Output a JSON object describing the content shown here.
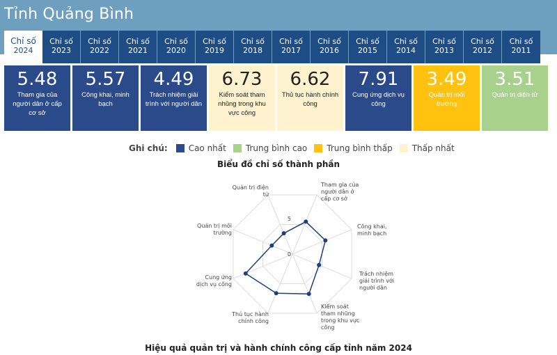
{
  "header": {
    "title": "Tỉnh Quảng Bình"
  },
  "tabs": [
    {
      "label": "Chỉ số",
      "year": "2024",
      "active": true
    },
    {
      "label": "Chỉ số",
      "year": "2023"
    },
    {
      "label": "Chỉ số",
      "year": "2022"
    },
    {
      "label": "Chỉ số",
      "year": "2021"
    },
    {
      "label": "Chỉ số",
      "year": "2020"
    },
    {
      "label": "Chỉ số",
      "year": "2019"
    },
    {
      "label": "Chỉ số",
      "year": "2018"
    },
    {
      "label": "Chỉ số",
      "year": "2017"
    },
    {
      "label": "Chỉ số",
      "year": "2016"
    },
    {
      "label": "Chỉ số",
      "year": "2015"
    },
    {
      "label": "Chỉ số",
      "year": "2014"
    },
    {
      "label": "Chỉ số",
      "year": "2013"
    },
    {
      "label": "Chỉ số",
      "year": "2012"
    },
    {
      "label": "Chỉ số",
      "year": "2011"
    }
  ],
  "cards": [
    {
      "value": "5.48",
      "label": "Tham gia của người dân ở cấp cơ sở",
      "level": "high"
    },
    {
      "value": "5.57",
      "label": "Công khai, minh bạch",
      "level": "high"
    },
    {
      "value": "4.49",
      "label": "Trách nhiệm giải trình với người dân",
      "level": "high"
    },
    {
      "value": "6.73",
      "label": "Kiểm soát tham nhũng trong khu vực công",
      "level": "low"
    },
    {
      "value": "6.62",
      "label": "Thủ tục hành chính công",
      "level": "low"
    },
    {
      "value": "7.91",
      "label": "Cung ứng dịch vụ công",
      "level": "high"
    },
    {
      "value": "3.49",
      "label": "Quản trị môi trường",
      "level": "mid-low"
    },
    {
      "value": "3.51",
      "label": "Quản trị điện tử",
      "level": "mid-high"
    }
  ],
  "legend": {
    "title": "Ghi chú:",
    "items": [
      {
        "label": "Cao nhất",
        "color": "#2a4a8a"
      },
      {
        "label": "Trung bình cao",
        "color": "#a9d18e"
      },
      {
        "label": "Trung bình thấp",
        "color": "#ffc20e"
      },
      {
        "label": "Thấp nhất",
        "color": "#fff3cf"
      }
    ]
  },
  "chart_title": "Biểu đồ chỉ số thành phần",
  "chart_footer": "Hiệu quả quản trị và hành chính công cấp tỉnh năm 2024",
  "chart_data": {
    "type": "radar",
    "title": "Biểu đồ chỉ số thành phần",
    "axes": [
      "Tham gia của người dân ở cấp cơ sở",
      "Công khai, minh bạch",
      "Trách nhiệm giải trình với người dân",
      "Kiểm soát tham nhũng trong khu vực công",
      "Thủ tục hành chính công",
      "Cung ứng dịch vụ công",
      "Quản trị môi trường",
      "Quản trị điện tử"
    ],
    "axis_labels": [
      [
        "Tham gia của",
        "người dân ở",
        "cấp cơ sở"
      ],
      [
        "Công khai,",
        "minh bạch"
      ],
      [
        "Trách nhiệm",
        "giải trình với",
        "người dân"
      ],
      [
        "Kiểm soát",
        "tham nhũng",
        "trong khu vực",
        "công"
      ],
      [
        "Thủ tục hành",
        "chính công"
      ],
      [
        "Cung ứng",
        "dịch vụ công"
      ],
      [
        "Quản trị môi",
        "trường"
      ],
      [
        "Quản trị điện",
        "tử"
      ]
    ],
    "values": [
      5.48,
      5.57,
      4.49,
      6.73,
      6.62,
      7.91,
      3.49,
      3.51
    ],
    "range": [
      0,
      10
    ],
    "tick_labels": [
      "0",
      "5"
    ],
    "series_color": "#1f3f7a"
  }
}
